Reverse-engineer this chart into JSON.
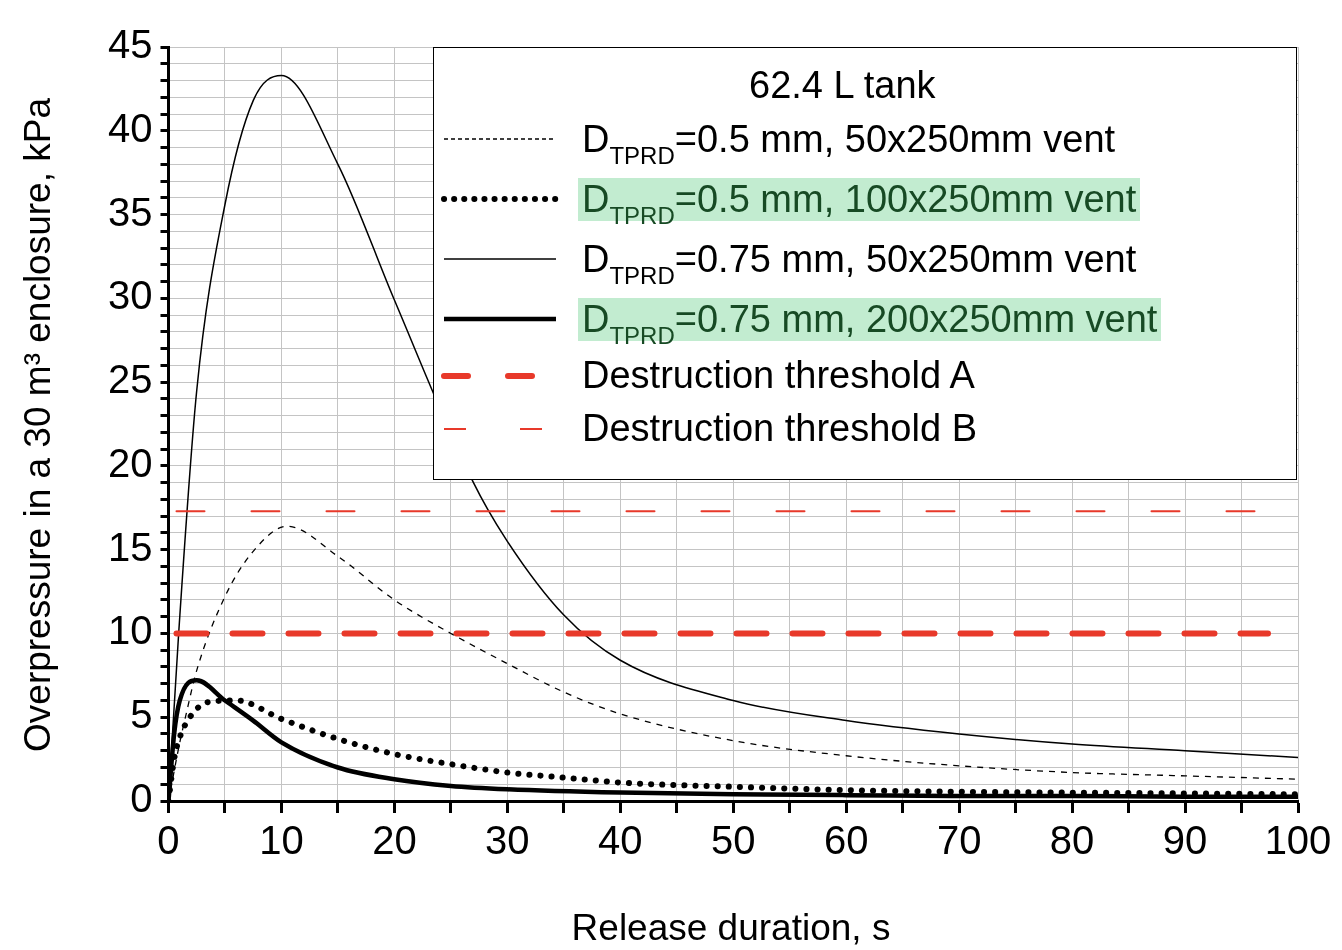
{
  "chart_data": {
    "type": "line",
    "xlabel": "Release duration, s",
    "ylabel": "Overpressure in a 30 m³ enclosure, kPa",
    "legend_title": "62.4 L tank",
    "legend": "top right",
    "grid": true,
    "marker": "none",
    "xlim": [
      0,
      100
    ],
    "ylim": [
      0,
      45
    ],
    "xticks": [
      0,
      {
        "value": 5,
        "label": null
      },
      10,
      {
        "value": 15,
        "label": null
      },
      20,
      {
        "value": 25,
        "label": null
      },
      30,
      {
        "value": 35,
        "label": null
      },
      40,
      {
        "value": 45,
        "label": null
      },
      50,
      {
        "value": 55,
        "label": null
      },
      60,
      {
        "value": 65,
        "label": null
      },
      70,
      {
        "value": 75,
        "label": null
      },
      80,
      {
        "value": 85,
        "label": null
      },
      90,
      {
        "value": 95,
        "label": null
      },
      100
    ],
    "yticks": [
      0,
      {
        "value": 1,
        "label": null
      },
      {
        "value": 2,
        "label": null
      },
      {
        "value": 3,
        "label": null
      },
      {
        "value": 4,
        "label": null
      },
      5,
      {
        "value": 6,
        "label": null
      },
      {
        "value": 7,
        "label": null
      },
      {
        "value": 8,
        "label": null
      },
      {
        "value": 9,
        "label": null
      },
      10,
      {
        "value": 11,
        "label": null
      },
      {
        "value": 12,
        "label": null
      },
      {
        "value": 13,
        "label": null
      },
      {
        "value": 14,
        "label": null
      },
      15,
      {
        "value": 16,
        "label": null
      },
      {
        "value": 17,
        "label": null
      },
      {
        "value": 18,
        "label": null
      },
      {
        "value": 19,
        "label": null
      },
      20,
      {
        "value": 21,
        "label": null
      },
      {
        "value": 22,
        "label": null
      },
      {
        "value": 23,
        "label": null
      },
      {
        "value": 24,
        "label": null
      },
      25,
      {
        "value": 26,
        "label": null
      },
      {
        "value": 27,
        "label": null
      },
      {
        "value": 28,
        "label": null
      },
      {
        "value": 29,
        "label": null
      },
      30,
      {
        "value": 31,
        "label": null
      },
      {
        "value": 32,
        "label": null
      },
      {
        "value": 33,
        "label": null
      },
      {
        "value": 34,
        "label": null
      },
      35,
      {
        "value": 36,
        "label": null
      },
      {
        "value": 37,
        "label": null
      },
      {
        "value": 38,
        "label": null
      },
      {
        "value": 39,
        "label": null
      },
      40,
      {
        "value": 41,
        "label": null
      },
      {
        "value": 42,
        "label": null
      },
      {
        "value": 43,
        "label": null
      },
      {
        "value": 44,
        "label": null
      },
      45
    ],
    "series": [
      {
        "name": "D$_{TPRD}$=0.5 mm, 50x250mm vent",
        "color": "#000000",
        "line_style": "dashed",
        "x": [
          0,
          1,
          1.5,
          2.5,
          5,
          7.5,
          10.5,
          15,
          20,
          25,
          30,
          35,
          40,
          50,
          60,
          70,
          80,
          90,
          100
        ],
        "values": [
          0,
          3.5,
          5,
          7.8,
          12.2,
          14.9,
          16.4,
          14.6,
          12.0,
          10.0,
          8.2,
          6.5,
          5.2,
          3.6,
          2.7,
          2.1,
          1.7,
          1.5,
          1.3
        ]
      },
      {
        "name": "D$_{TPRD}$=0.5 mm, 100x250mm vent",
        "color": "#000000",
        "line_style": "dotted",
        "x": [
          0,
          0.5,
          1,
          2,
          3.5,
          6,
          10,
          15,
          20,
          25,
          30,
          35,
          40,
          50,
          60,
          70,
          80,
          90,
          100
        ],
        "values": [
          0,
          2.5,
          3.8,
          5.1,
          5.9,
          6.0,
          4.9,
          3.7,
          2.8,
          2.2,
          1.7,
          1.4,
          1.1,
          0.85,
          0.65,
          0.55,
          0.5,
          0.45,
          0.4
        ]
      },
      {
        "name": "D$_{TPRD}$=0.75 mm, 50x250mm vent",
        "color": "#000000",
        "line_style": "solid",
        "x": [
          0,
          0.9,
          2.5,
          5,
          7.5,
          10,
          15,
          20,
          27,
          30,
          35,
          40,
          50,
          60,
          70,
          80,
          90,
          100
        ],
        "values": [
          0,
          10,
          24.5,
          35.6,
          41.8,
          43.3,
          38,
          29.9,
          19,
          15.5,
          11.1,
          8.4,
          6.0,
          4.8,
          4.0,
          3.4,
          3.0,
          2.6
        ]
      },
      {
        "name": "D$_{TPRD}$=0.75 mm, 200x250mm vent",
        "color": "#000000",
        "line_style": "solid",
        "x": [
          0,
          0.5,
          1,
          2.5,
          5,
          7.5,
          10,
          15,
          20,
          25,
          30,
          40,
          50,
          60,
          70,
          80,
          90,
          100
        ],
        "values": [
          0,
          4,
          6,
          7.2,
          6.0,
          4.8,
          3.5,
          2.0,
          1.3,
          0.9,
          0.7,
          0.5,
          0.4,
          0.35,
          0.3,
          0.3,
          0.25,
          0.25
        ]
      }
    ],
    "ref_lines": [
      {
        "axis": "y",
        "value": 10,
        "label": "Destruction threshold A",
        "color": "#e8392a",
        "line_style": "dashed"
      },
      {
        "axis": "y",
        "value": 17.3,
        "label": "Destruction threshold B",
        "color": "#e8392a",
        "line_style": "dashed"
      }
    ]
  }
}
